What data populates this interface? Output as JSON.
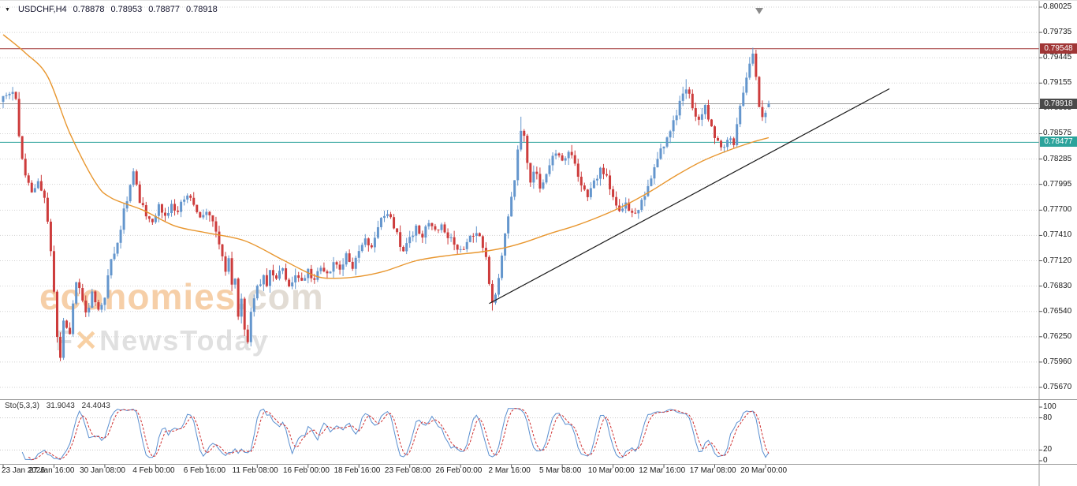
{
  "header": {
    "dropdown_icon": "▼",
    "symbol_label": "USDCHF,H4",
    "ohlc": {
      "open": "0.78878",
      "high": "0.78953",
      "low": "0.78877",
      "close": "0.78918"
    }
  },
  "watermark": {
    "brand": "economies",
    "brand_suffix": ".com",
    "sub_prefix": "F",
    "sub_mark": "✕",
    "sub_suffix": "NewsToday"
  },
  "indicator_header": {
    "label": "Sto(5,3,3)",
    "k_value": "31.9043",
    "d_value": "24.4043"
  },
  "chart_data": {
    "type": "candlestick",
    "symbol": "USDCHF",
    "timeframe": "H4",
    "title": "USDCHF,H4 0.78878 0.78953 0.78877 0.78918",
    "grid": true,
    "legend_position": "none",
    "ylim": [
      0.7567,
      0.80025
    ],
    "price_axis_labels": [
      "0.80025",
      "0.79735",
      "0.79445",
      "0.79155",
      "0.78865",
      "0.78575",
      "0.78285",
      "0.77995",
      "0.77700",
      "0.77410",
      "0.77120",
      "0.76830",
      "0.76540",
      "0.76250",
      "0.75960",
      "0.75670"
    ],
    "time_axis_labels": [
      {
        "i": 0,
        "label": "23 Jan 2026"
      },
      {
        "i": 16,
        "label": "27 Jan 16:00"
      },
      {
        "i": 32,
        "label": "30 Jan 08:00"
      },
      {
        "i": 48,
        "label": "4 Feb 00:00"
      },
      {
        "i": 64,
        "label": "6 Feb 16:00"
      },
      {
        "i": 80,
        "label": "11 Feb 08:00"
      },
      {
        "i": 96,
        "label": "16 Feb 00:00"
      },
      {
        "i": 112,
        "label": "18 Feb 16:00"
      },
      {
        "i": 128,
        "label": "23 Feb 08:00"
      },
      {
        "i": 144,
        "label": "26 Feb 00:00"
      },
      {
        "i": 160,
        "label": "2 Mar 16:00"
      },
      {
        "i": 176,
        "label": "5 Mar 08:00"
      },
      {
        "i": 192,
        "label": "10 Mar 00:00"
      },
      {
        "i": 208,
        "label": "12 Mar 16:00"
      },
      {
        "i": 224,
        "label": "17 Mar 08:00"
      },
      {
        "i": 240,
        "label": "20 Mar 00:00"
      }
    ],
    "candle_count": 242,
    "close_anchors": [
      [
        0,
        0.7897
      ],
      [
        2,
        0.7904
      ],
      [
        4,
        0.7899
      ],
      [
        5,
        0.7852
      ],
      [
        7,
        0.7806
      ],
      [
        9,
        0.7791
      ],
      [
        11,
        0.7803
      ],
      [
        13,
        0.7787
      ],
      [
        15,
        0.7722
      ],
      [
        17,
        0.7628
      ],
      [
        18,
        0.7601
      ],
      [
        19,
        0.7645
      ],
      [
        21,
        0.763
      ],
      [
        23,
        0.7691
      ],
      [
        25,
        0.7667
      ],
      [
        26,
        0.765
      ],
      [
        28,
        0.7674
      ],
      [
        30,
        0.7658
      ],
      [
        32,
        0.7672
      ],
      [
        34,
        0.7713
      ],
      [
        36,
        0.7732
      ],
      [
        38,
        0.7768
      ],
      [
        40,
        0.78
      ],
      [
        41,
        0.7813
      ],
      [
        43,
        0.7782
      ],
      [
        45,
        0.7764
      ],
      [
        47,
        0.7759
      ],
      [
        49,
        0.7773
      ],
      [
        51,
        0.7763
      ],
      [
        53,
        0.7777
      ],
      [
        55,
        0.7768
      ],
      [
        57,
        0.7785
      ],
      [
        58,
        0.7789
      ],
      [
        60,
        0.7776
      ],
      [
        62,
        0.7762
      ],
      [
        64,
        0.7771
      ],
      [
        66,
        0.7756
      ],
      [
        68,
        0.7732
      ],
      [
        70,
        0.7701
      ],
      [
        71,
        0.7713
      ],
      [
        72,
        0.7682
      ],
      [
        73,
        0.7692
      ],
      [
        74,
        0.7652
      ],
      [
        75,
        0.7666
      ],
      [
        76,
        0.7632
      ],
      [
        77,
        0.7621
      ],
      [
        78,
        0.7655
      ],
      [
        80,
        0.768
      ],
      [
        82,
        0.7695
      ],
      [
        83,
        0.7681
      ],
      [
        84,
        0.7699
      ],
      [
        86,
        0.769
      ],
      [
        88,
        0.7704
      ],
      [
        90,
        0.7682
      ],
      [
        92,
        0.7696
      ],
      [
        94,
        0.7686
      ],
      [
        96,
        0.77
      ],
      [
        98,
        0.7691
      ],
      [
        100,
        0.7704
      ],
      [
        102,
        0.7695
      ],
      [
        104,
        0.7709
      ],
      [
        106,
        0.7701
      ],
      [
        108,
        0.7719
      ],
      [
        110,
        0.7706
      ],
      [
        112,
        0.7721
      ],
      [
        114,
        0.7736
      ],
      [
        116,
        0.7729
      ],
      [
        118,
        0.7753
      ],
      [
        120,
        0.7767
      ],
      [
        122,
        0.7758
      ],
      [
        124,
        0.7741
      ],
      [
        126,
        0.7722
      ],
      [
        128,
        0.7736
      ],
      [
        130,
        0.7749
      ],
      [
        132,
        0.7741
      ],
      [
        134,
        0.7754
      ],
      [
        136,
        0.7745
      ],
      [
        138,
        0.7757
      ],
      [
        140,
        0.774
      ],
      [
        142,
        0.773
      ],
      [
        144,
        0.7722
      ],
      [
        146,
        0.7736
      ],
      [
        148,
        0.7744
      ],
      [
        150,
        0.7739
      ],
      [
        152,
        0.772
      ],
      [
        153,
        0.7685
      ],
      [
        154,
        0.7663
      ],
      [
        155,
        0.7672
      ],
      [
        156,
        0.7692
      ],
      [
        157,
        0.7716
      ],
      [
        158,
        0.7744
      ],
      [
        159,
        0.7766
      ],
      [
        160,
        0.7788
      ],
      [
        161,
        0.7808
      ],
      [
        162,
        0.7836
      ],
      [
        163,
        0.7862
      ],
      [
        164,
        0.7858
      ],
      [
        165,
        0.7821
      ],
      [
        166,
        0.7799
      ],
      [
        167,
        0.7812
      ],
      [
        168,
        0.7808
      ],
      [
        169,
        0.7798
      ],
      [
        170,
        0.7803
      ],
      [
        172,
        0.7824
      ],
      [
        174,
        0.7837
      ],
      [
        176,
        0.7827
      ],
      [
        178,
        0.7838
      ],
      [
        180,
        0.7821
      ],
      [
        182,
        0.78
      ],
      [
        184,
        0.7787
      ],
      [
        186,
        0.7801
      ],
      [
        188,
        0.7817
      ],
      [
        190,
        0.7806
      ],
      [
        192,
        0.7781
      ],
      [
        194,
        0.7769
      ],
      [
        196,
        0.7779
      ],
      [
        198,
        0.7764
      ],
      [
        200,
        0.7773
      ],
      [
        202,
        0.7788
      ],
      [
        204,
        0.7805
      ],
      [
        206,
        0.7829
      ],
      [
        208,
        0.7846
      ],
      [
        210,
        0.7861
      ],
      [
        212,
        0.7879
      ],
      [
        214,
        0.7904
      ],
      [
        215,
        0.7911
      ],
      [
        217,
        0.7889
      ],
      [
        219,
        0.7873
      ],
      [
        221,
        0.7891
      ],
      [
        222,
        0.7876
      ],
      [
        224,
        0.7853
      ],
      [
        226,
        0.7839
      ],
      [
        228,
        0.7851
      ],
      [
        230,
        0.7847
      ],
      [
        232,
        0.7888
      ],
      [
        234,
        0.7921
      ],
      [
        235,
        0.7937
      ],
      [
        236,
        0.7949
      ],
      [
        237,
        0.7921
      ],
      [
        238,
        0.7888
      ],
      [
        239,
        0.7877
      ],
      [
        240,
        0.7884
      ],
      [
        241,
        0.78918
      ]
    ],
    "extremes": [
      {
        "i": 18,
        "low": 0.7597
      },
      {
        "i": 77,
        "low": 0.7617
      },
      {
        "i": 154,
        "low": 0.7655
      },
      {
        "i": 163,
        "high": 0.7877
      },
      {
        "i": 215,
        "high": 0.792
      },
      {
        "i": 236,
        "high": 0.7956
      },
      {
        "i": 241,
        "open": 0.78878,
        "high": 0.78953,
        "low": 0.78877,
        "close": 0.78918
      }
    ],
    "candle_colors": {
      "bull": "#6496cd",
      "bear": "#cd3c3c"
    },
    "overlays": {
      "moving_average": {
        "color": "#e8962e",
        "anchors": [
          [
            0,
            0.7971
          ],
          [
            7,
            0.795
          ],
          [
            14,
            0.7923
          ],
          [
            21,
            0.7858
          ],
          [
            29,
            0.7802
          ],
          [
            34,
            0.7784
          ],
          [
            44,
            0.777
          ],
          [
            54,
            0.7752
          ],
          [
            64,
            0.7744
          ],
          [
            76,
            0.7735
          ],
          [
            88,
            0.7713
          ],
          [
            98,
            0.7695
          ],
          [
            104,
            0.7692
          ],
          [
            112,
            0.7694
          ],
          [
            120,
            0.77
          ],
          [
            130,
            0.7712
          ],
          [
            140,
            0.7718
          ],
          [
            150,
            0.7722
          ],
          [
            158,
            0.7727
          ],
          [
            164,
            0.7733
          ],
          [
            172,
            0.7743
          ],
          [
            180,
            0.7752
          ],
          [
            188,
            0.7763
          ],
          [
            196,
            0.7776
          ],
          [
            204,
            0.7792
          ],
          [
            212,
            0.781
          ],
          [
            220,
            0.7826
          ],
          [
            228,
            0.7838
          ],
          [
            236,
            0.7848
          ],
          [
            241,
            0.7853
          ]
        ]
      },
      "trendline": {
        "color": "#1a1a1a",
        "i1": 153,
        "p1": 0.7663,
        "i2": 279,
        "p2": 0.7909
      },
      "hlines": [
        {
          "name": "resistance-line",
          "price": 0.79548,
          "label": "0.79548",
          "color": "#a03636",
          "line_color": "#a03636"
        },
        {
          "name": "current-price-line",
          "price": 0.78918,
          "label": "0.78918",
          "color": "#4a4a4a",
          "line_color": "#999999"
        },
        {
          "name": "support-line",
          "price": 0.78477,
          "label": "0.78477",
          "color": "#2ba39b",
          "line_color": "#2ba39b"
        }
      ]
    },
    "indicator": {
      "name": "Sto(5,3,3)",
      "params": [
        5,
        3,
        3
      ],
      "k": 31.9043,
      "d": 24.4043,
      "levels": [
        {
          "value": 100,
          "label": "100"
        },
        {
          "value": 80,
          "label": "80"
        },
        {
          "value": 20,
          "label": "20"
        },
        {
          "value": 0,
          "label": "0"
        }
      ],
      "colors": {
        "k": "#5a8fd0",
        "d": "#d03030"
      }
    }
  }
}
